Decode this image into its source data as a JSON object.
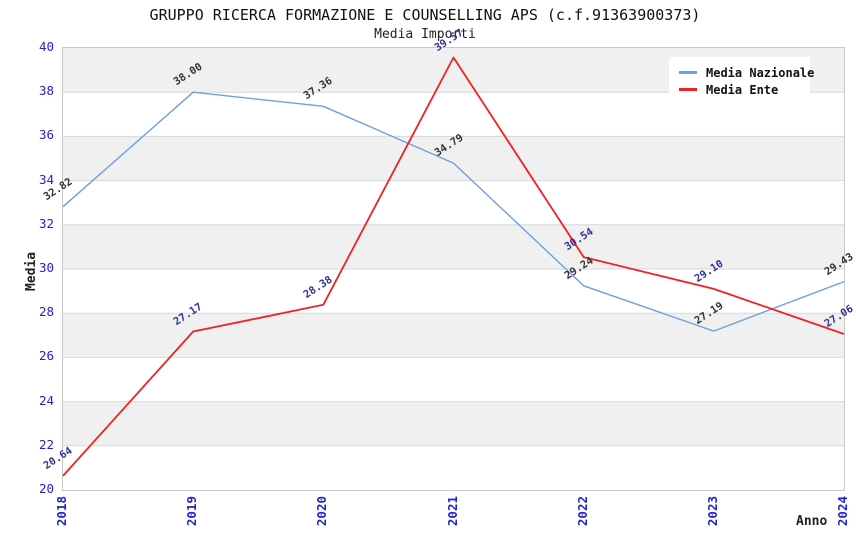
{
  "chart_data": {
    "type": "line",
    "title": "GRUPPO RICERCA FORMAZIONE E COUNSELLING APS (c.f.91363900373)",
    "subtitle": "Media Importi",
    "xlabel": "Anno",
    "ylabel": "Media",
    "categories": [
      "2018",
      "2019",
      "2020",
      "2021",
      "2022",
      "2023",
      "2024"
    ],
    "ylim": [
      20,
      40
    ],
    "ytick_step": 2,
    "yticks": [
      "20",
      "22",
      "24",
      "26",
      "28",
      "30",
      "32",
      "34",
      "36",
      "38",
      "40"
    ],
    "grid": "horizontal-gridlines-with-alternating-bands",
    "legend_position": "top-right",
    "colors": {
      "band_fill": "#f0f0f0",
      "grid_line": "#d9d9d9",
      "plot_border": "#c8c8c8",
      "tick_label": "#2222cc",
      "title_text": "#111111"
    },
    "series": [
      {
        "name": "Media Nazionale",
        "color": "#6da0dd",
        "label_color": "#333333",
        "values": [
          32.82,
          38.0,
          37.36,
          34.79,
          29.24,
          27.19,
          29.43
        ],
        "labels": [
          "32.82",
          "38.00",
          "37.36",
          "34.79",
          "29.24",
          "27.19",
          "29.43"
        ]
      },
      {
        "name": "Media Ente",
        "color": "#ee2222",
        "label_color": "#333399",
        "values": [
          20.64,
          27.17,
          28.38,
          39.57,
          30.54,
          29.1,
          27.06
        ],
        "labels": [
          "20.64",
          "27.17",
          "28.38",
          "39.57",
          "30.54",
          "29.10",
          "27.06"
        ]
      }
    ]
  }
}
